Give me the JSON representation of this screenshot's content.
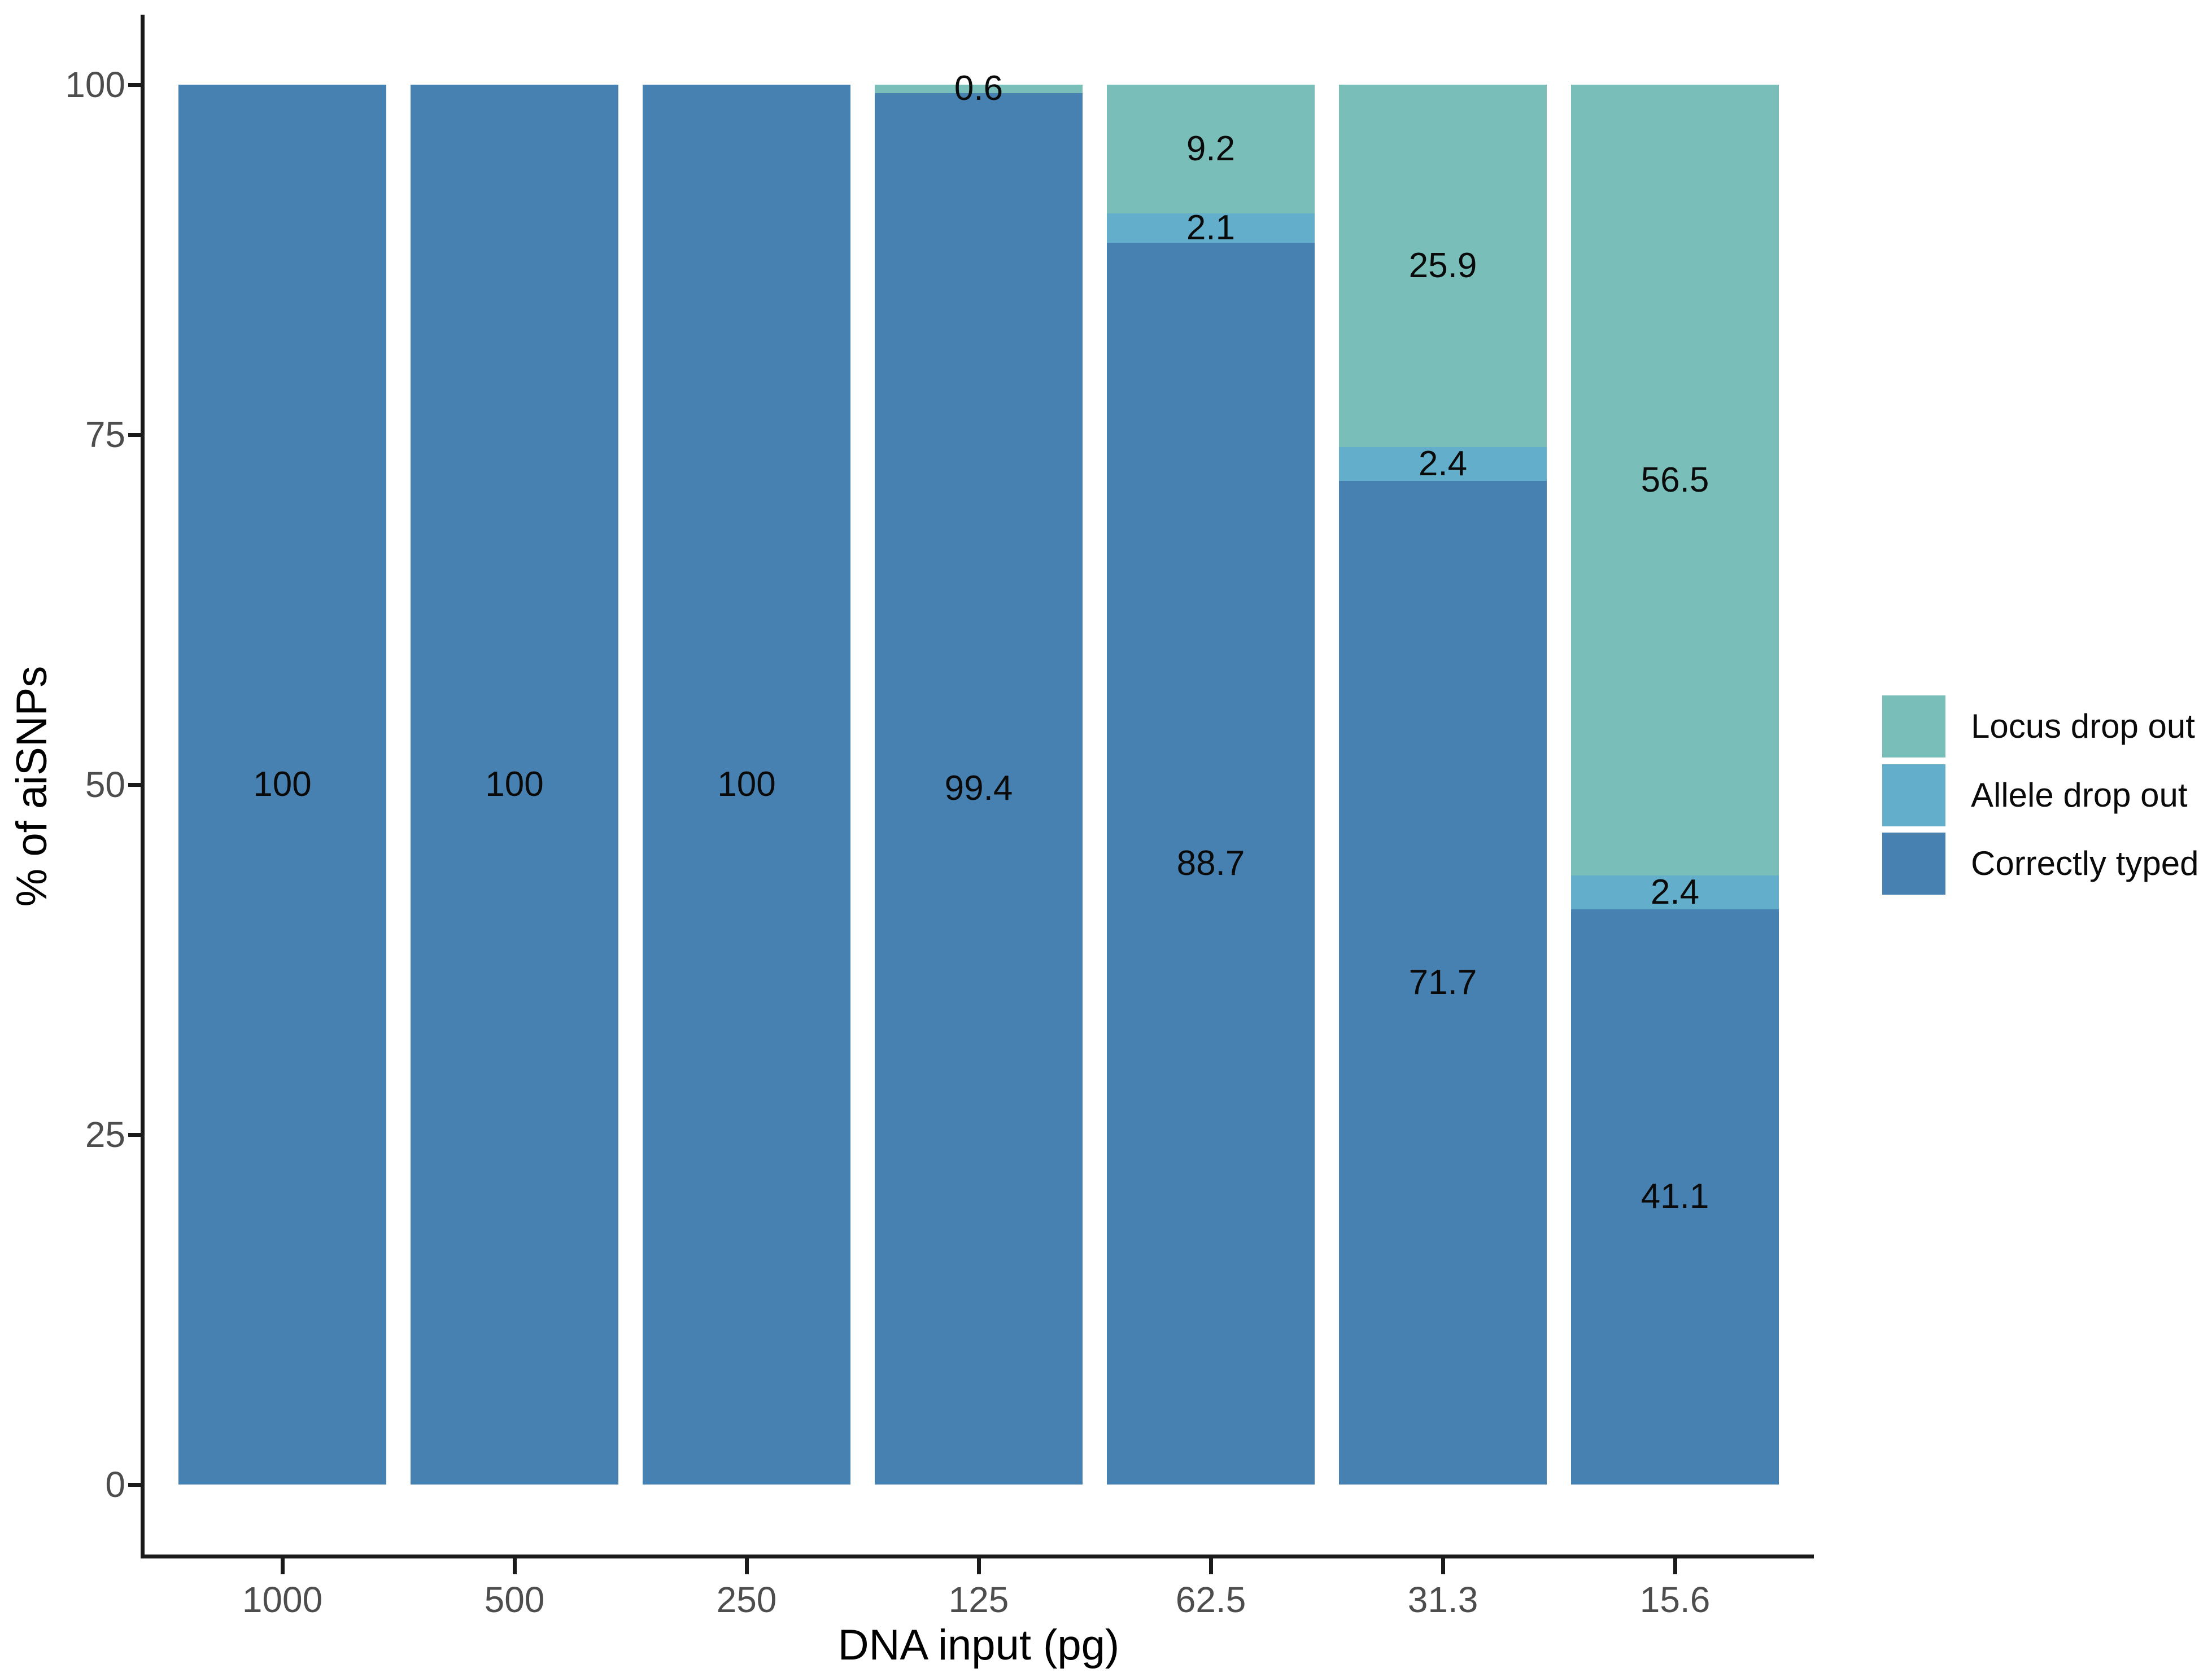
{
  "chart_data": {
    "type": "bar",
    "stacked": true,
    "orientation": "vertical",
    "title": "",
    "xlabel": "DNA input (pg)",
    "ylabel": "% of aiSNPs",
    "categories": [
      "1000",
      "500",
      "250",
      "125",
      "62.5",
      "31.3",
      "15.6"
    ],
    "y_ticks": [
      "0",
      "25",
      "50",
      "75",
      "100"
    ],
    "ylim": [
      0,
      100
    ],
    "grid": false,
    "legend_position": "right",
    "colors": {
      "Locus drop out": "#79BEB9",
      "Allele drop out": "#63AECB",
      "Correctly typed": "#4781B2"
    },
    "series": [
      {
        "name": "Correctly typed",
        "values": [
          100,
          100,
          100,
          99.4,
          88.7,
          71.7,
          41.1
        ]
      },
      {
        "name": "Allele drop out",
        "values": [
          0,
          0,
          0,
          0,
          2.1,
          2.4,
          2.4
        ]
      },
      {
        "name": "Locus drop out",
        "values": [
          0,
          0,
          0,
          0.6,
          9.2,
          25.9,
          56.5
        ]
      }
    ],
    "bars": [
      {
        "category": "1000",
        "segments": [
          {
            "series": "Correctly typed",
            "value": 100,
            "label": "100"
          }
        ]
      },
      {
        "category": "500",
        "segments": [
          {
            "series": "Correctly typed",
            "value": 100,
            "label": "100"
          }
        ]
      },
      {
        "category": "250",
        "segments": [
          {
            "series": "Correctly typed",
            "value": 100,
            "label": "100"
          }
        ]
      },
      {
        "category": "125",
        "segments": [
          {
            "series": "Locus drop out",
            "value": 0.6,
            "label": "0.6"
          },
          {
            "series": "Correctly typed",
            "value": 99.4,
            "label": "99.4"
          }
        ]
      },
      {
        "category": "62.5",
        "segments": [
          {
            "series": "Locus drop out",
            "value": 9.2,
            "label": "9.2"
          },
          {
            "series": "Allele drop out",
            "value": 2.1,
            "label": "2.1"
          },
          {
            "series": "Correctly typed",
            "value": 88.7,
            "label": "88.7"
          }
        ]
      },
      {
        "category": "31.3",
        "segments": [
          {
            "series": "Locus drop out",
            "value": 25.9,
            "label": "25.9"
          },
          {
            "series": "Allele drop out",
            "value": 2.4,
            "label": "2.4"
          },
          {
            "series": "Correctly typed",
            "value": 71.7,
            "label": "71.7"
          }
        ]
      },
      {
        "category": "15.6",
        "segments": [
          {
            "series": "Locus drop out",
            "value": 56.5,
            "label": "56.5"
          },
          {
            "series": "Allele drop out",
            "value": 2.4,
            "label": "2.4"
          },
          {
            "series": "Correctly typed",
            "value": 41.1,
            "label": "41.1"
          }
        ]
      }
    ],
    "legend": [
      {
        "label": "Locus drop out"
      },
      {
        "label": "Allele drop out"
      },
      {
        "label": "Correctly typed"
      }
    ]
  }
}
